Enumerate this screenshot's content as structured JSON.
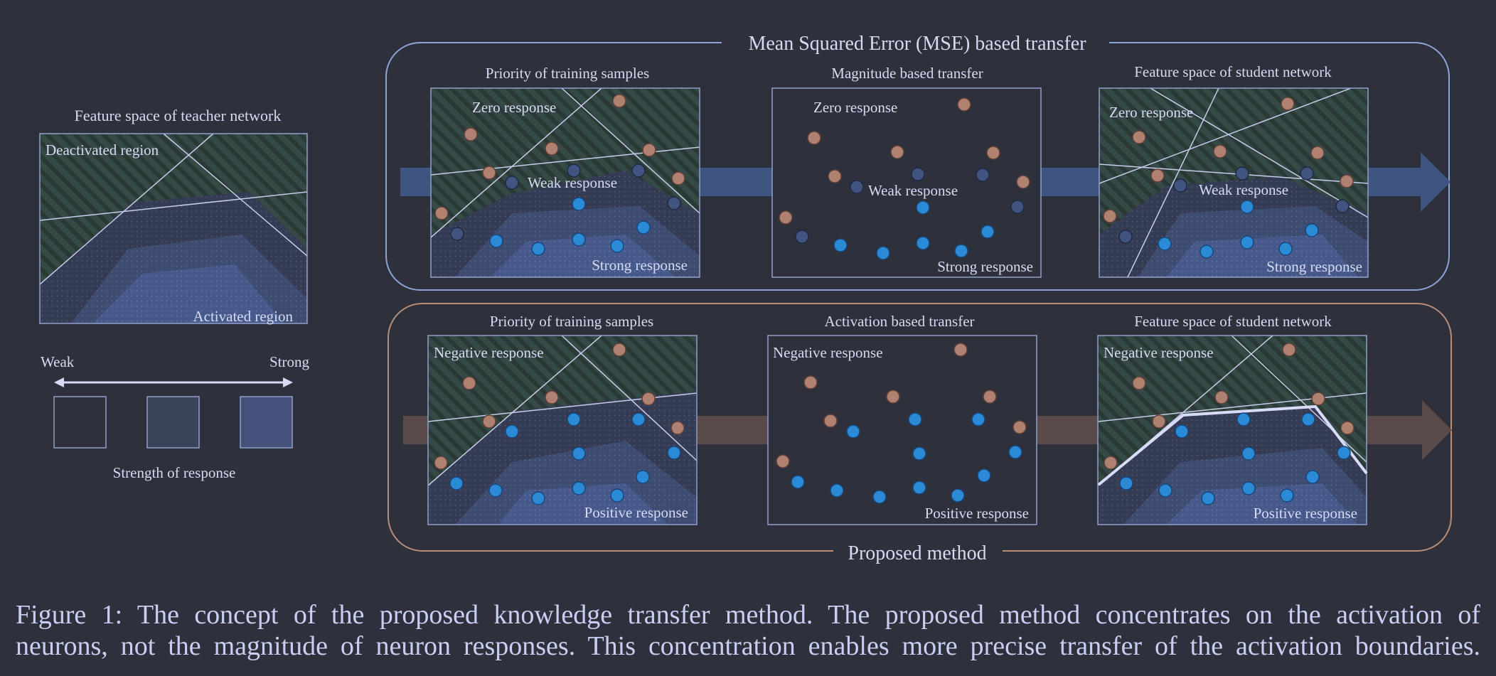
{
  "legend": {
    "teacher_title": "Feature space of teacher network",
    "deactivated": "Deactivated region",
    "activated": "Activated region",
    "weak": "Weak",
    "strong": "Strong",
    "strength": "Strength of response"
  },
  "mse": {
    "title": "Mean Squared Error (MSE) based transfer",
    "p1": {
      "title": "Priority of training samples",
      "zero": "Zero response",
      "weak": "Weak response",
      "strong": "Strong response"
    },
    "p2": {
      "title": "Magnitude based transfer",
      "zero": "Zero response",
      "weak": "Weak response",
      "strong": "Strong response"
    },
    "p3": {
      "title": "Feature space of student network",
      "zero": "Zero response",
      "weak": "Weak response",
      "strong": "Strong response"
    }
  },
  "proposed": {
    "title": "Proposed method",
    "p1": {
      "title": "Priority of training samples",
      "neg": "Negative response",
      "pos": "Positive response"
    },
    "p2": {
      "title": "Activation based transfer",
      "neg": "Negative response",
      "pos": "Positive response"
    },
    "p3": {
      "title": "Feature space of student network",
      "neg": "Negative response",
      "pos": "Positive response"
    }
  },
  "caption": {
    "line1": "Figure 1: The concept of the proposed knowledge transfer method. The proposed method concentrates on the activation of",
    "line2": "neurons, not the magnitude of neuron responses. This concentration enables more precise transfer of the activation boundaries."
  },
  "colors": {
    "background": "#2e313c",
    "mse_frame": "#8ea3d6",
    "proposed_frame": "#b88e78",
    "positive_dot": "#2b8ad6",
    "negative_dot": "#b08070",
    "weak_dot": "#40547f"
  }
}
